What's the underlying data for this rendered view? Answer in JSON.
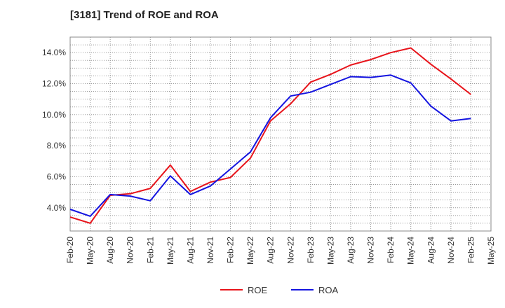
{
  "chart_data": {
    "type": "line",
    "title": "[3181]  Trend of ROE and ROA",
    "xlabel": "",
    "ylabel": "",
    "categories": [
      "Feb-20",
      "May-20",
      "Aug-20",
      "Nov-20",
      "Feb-21",
      "May-21",
      "Aug-21",
      "Nov-21",
      "Feb-22",
      "May-22",
      "Aug-22",
      "Nov-22",
      "Feb-23",
      "May-23",
      "Aug-23",
      "Nov-23",
      "Feb-24",
      "May-24",
      "Aug-24",
      "Nov-24",
      "Feb-25",
      "May-25"
    ],
    "ylim": [
      2.5,
      15.0
    ],
    "yticks": [
      4.0,
      6.0,
      8.0,
      10.0,
      12.0,
      14.0
    ],
    "ytick_labels": [
      "4.0%",
      "6.0%",
      "8.0%",
      "10.0%",
      "12.0%",
      "14.0%"
    ],
    "grid": true,
    "legend_position": "bottom",
    "series": [
      {
        "name": "ROE",
        "color": "#e8141b",
        "values": [
          3.4,
          3.0,
          4.8,
          4.9,
          5.25,
          6.75,
          5.05,
          5.65,
          5.95,
          7.2,
          9.6,
          10.7,
          12.1,
          12.6,
          13.2,
          13.55,
          14.0,
          14.3,
          13.25,
          12.3,
          11.3,
          null
        ]
      },
      {
        "name": "ROA",
        "color": "#1414e0",
        "values": [
          3.9,
          3.45,
          4.85,
          4.75,
          4.45,
          6.05,
          4.85,
          5.4,
          6.5,
          7.6,
          9.8,
          11.2,
          11.45,
          11.95,
          12.45,
          12.4,
          12.55,
          12.05,
          10.55,
          9.6,
          9.75,
          null
        ]
      }
    ]
  }
}
